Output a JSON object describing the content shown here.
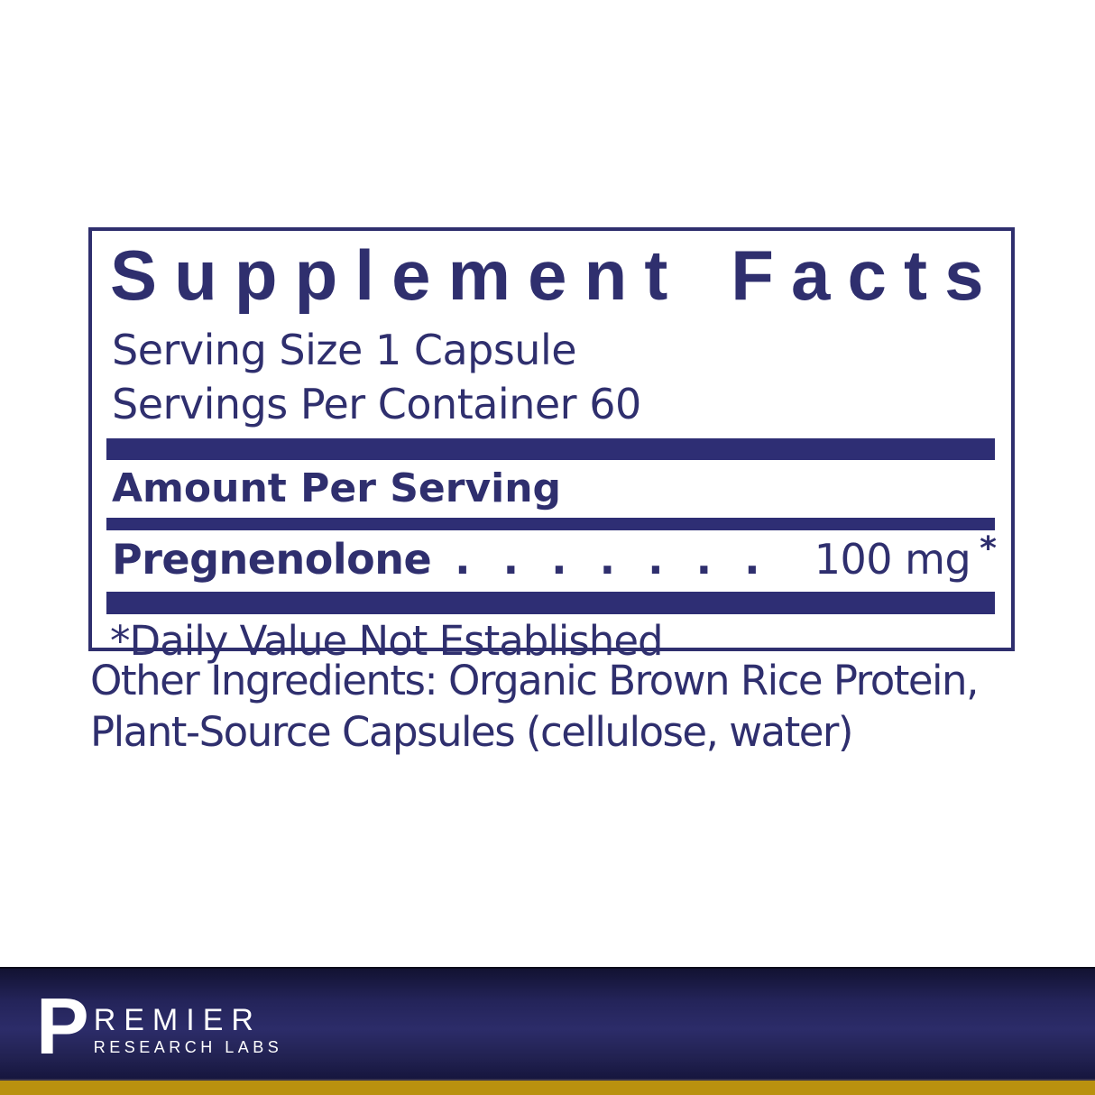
{
  "label": {
    "title": "Supplement Facts",
    "serving_size": "Serving Size 1 Capsule",
    "servings_per_container": "Servings Per Container 60",
    "amount_header": "Amount Per Serving",
    "rows": [
      {
        "name": "Pregnenolone",
        "dots": ". . . . . . . . . . . . . .",
        "amount": "100 mg",
        "dv_symbol": "*"
      }
    ],
    "footnote": "*Daily Value Not Established"
  },
  "other_ingredients": {
    "line1": "Other Ingredients: Organic Brown Rice Protein,",
    "line2": "Plant-Source Capsules (cellulose, water)"
  },
  "brand": {
    "initial": "P",
    "name_rest": "REMIER",
    "subtitle": "RESEARCH LABS"
  },
  "colors": {
    "navy_text": "#2f2f6e",
    "bar_navy": "#2e2e74",
    "band_navy_mid": "#2c2c69",
    "gold": "#b9910f",
    "logo_white": "#ffffff"
  }
}
